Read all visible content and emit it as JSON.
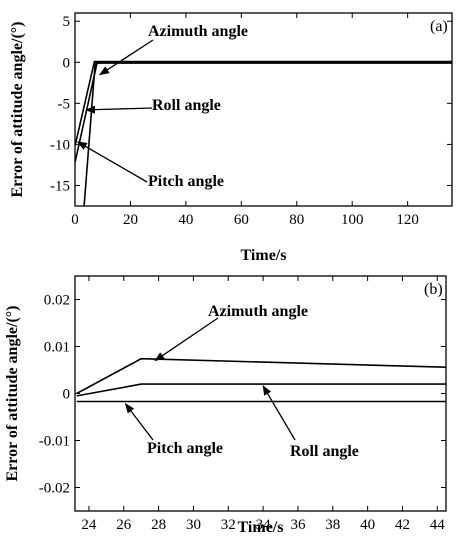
{
  "chart_data": [
    {
      "panel": "(a)",
      "type": "line",
      "xlabel": "Time/s",
      "ylabel": "Error of attitude angle/(°)",
      "xlim": [
        0,
        136
      ],
      "ylim": [
        -17.5,
        6
      ],
      "xticks": [
        0,
        20,
        40,
        60,
        80,
        100,
        120
      ],
      "yticks": [
        5,
        0,
        -5,
        -10,
        -15
      ],
      "series": [
        {
          "name": "Azimuth angle",
          "x": [
            3.3,
            7.3,
            136
          ],
          "y": [
            -17.5,
            -0.1,
            -0.1
          ]
        },
        {
          "name": "Roll angle",
          "x": [
            0,
            8,
            136
          ],
          "y": [
            -12.2,
            0,
            0
          ]
        },
        {
          "name": "Pitch angle",
          "x": [
            0,
            7,
            136
          ],
          "y": [
            -10.2,
            0.1,
            0.1
          ]
        }
      ],
      "annotations": [
        {
          "text": "Azimuth angle",
          "point_to": [
            9,
            -1.5
          ]
        },
        {
          "text": "Roll angle",
          "point_to": [
            4,
            -5.8
          ]
        },
        {
          "text": "Pitch angle",
          "point_to": [
            1,
            -9.7
          ]
        }
      ],
      "grid": false
    },
    {
      "panel": "(b)",
      "type": "line",
      "xlabel": "Time/s",
      "ylabel": "Error of attitude angle/(°)",
      "xlim": [
        23.2,
        44.5
      ],
      "ylim": [
        -0.025,
        0.025
      ],
      "xticks": [
        24,
        26,
        28,
        30,
        32,
        34,
        36,
        38,
        40,
        42,
        44
      ],
      "yticks": [
        "0.02",
        "0.01",
        "0",
        "-0.01",
        "-0.02"
      ],
      "series": [
        {
          "name": "Azimuth angle",
          "x": [
            23.3,
            27,
            44.5
          ],
          "y": [
            0,
            0.0074,
            0.0056
          ]
        },
        {
          "name": "Roll angle",
          "x": [
            23.3,
            27,
            44.5
          ],
          "y": [
            -0.0005,
            0.002,
            0.002
          ]
        },
        {
          "name": "Pitch angle",
          "x": [
            23.3,
            44.5
          ],
          "y": [
            -0.0017,
            -0.0017
          ]
        }
      ],
      "annotations": [
        {
          "text": "Azimuth angle",
          "point_to": [
            27.8,
            0.007
          ]
        },
        {
          "text": "Roll angle",
          "point_to": [
            34,
            0.0016
          ]
        },
        {
          "text": "Pitch angle",
          "point_to": [
            26.1,
            -0.0022
          ]
        }
      ],
      "grid": false
    }
  ]
}
